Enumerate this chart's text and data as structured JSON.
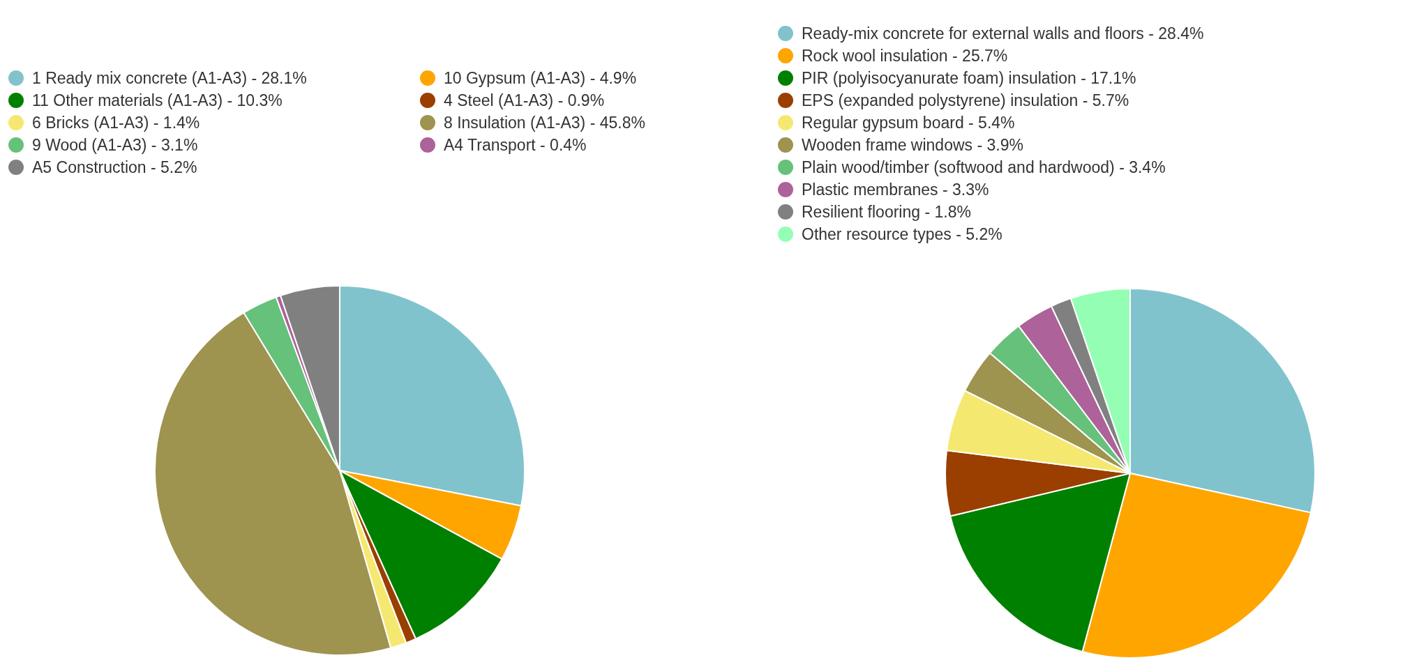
{
  "chart_data": [
    {
      "type": "pie",
      "legend": "top left",
      "categories": [
        "1 Ready mix concrete (A1-A3) - 28.1%",
        "10 Gypsum (A1-A3) - 4.9%",
        "11 Other materials (A1-A3) - 10.3%",
        "4 Steel (A1-A3) - 0.9%",
        "6 Bricks (A1-A3) - 1.4%",
        "8 Insulation (A1-A3) - 45.8%",
        "9 Wood (A1-A3) - 3.1%",
        "A4 Transport - 0.4%",
        "A5 Construction - 5.2%"
      ],
      "values": [
        28.1,
        4.9,
        10.3,
        0.9,
        1.4,
        45.8,
        3.1,
        0.4,
        5.2
      ],
      "colors": [
        "#80c3cd",
        "#ffa500",
        "#008000",
        "#9a3f00",
        "#f5e870",
        "#9e934f",
        "#66c17a",
        "#ad6299",
        "#808080"
      ]
    },
    {
      "type": "pie",
      "legend": "top",
      "categories": [
        "Ready-mix concrete for external walls and floors - 28.4%",
        "Rock wool insulation - 25.7%",
        "PIR (polyisocyanurate foam) insulation - 17.1%",
        "EPS (expanded polystyrene) insulation - 5.7%",
        "Regular gypsum board - 5.4%",
        "Wooden frame windows - 3.9%",
        "Plain wood/timber (softwood and hardwood) - 3.4%",
        "Plastic membranes - 3.3%",
        "Resilient flooring - 1.8%",
        "Other resource types - 5.2%"
      ],
      "values": [
        28.4,
        25.7,
        17.1,
        5.7,
        5.4,
        3.9,
        3.4,
        3.3,
        1.8,
        5.2
      ],
      "colors": [
        "#80c3cd",
        "#ffa500",
        "#008000",
        "#9a3f00",
        "#f5e870",
        "#9e934f",
        "#66c17a",
        "#ad6299",
        "#808080",
        "#94ffb4"
      ]
    }
  ]
}
